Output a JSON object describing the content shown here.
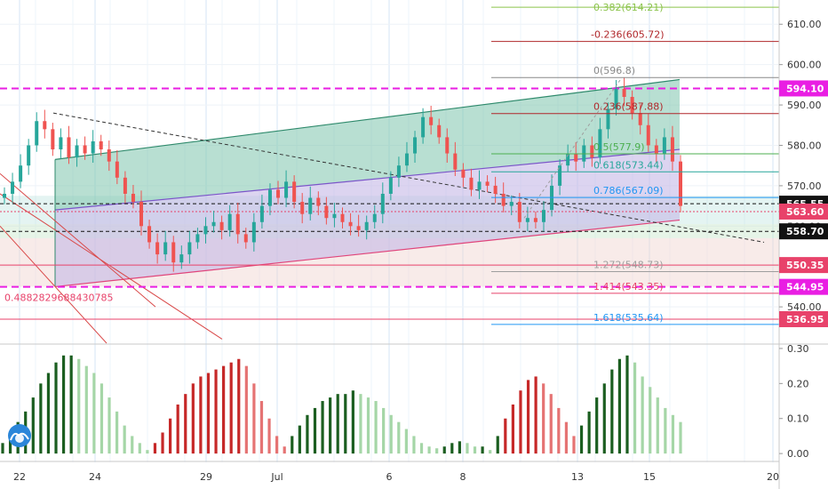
{
  "chart_data": {
    "type": "candlestick",
    "price_axis": {
      "min": 531,
      "max": 616,
      "ticks": [
        540,
        550,
        560,
        570,
        580,
        590,
        600,
        610
      ],
      "tick_labels": [
        "540.00",
        "550.00",
        "560.00",
        "570.00",
        "580.00",
        "590.00",
        "600.00",
        "610.00"
      ]
    },
    "indicator_axis": {
      "min": -0.02,
      "max": 0.31,
      "ticks": [
        0.0,
        0.1,
        0.2,
        0.3
      ],
      "tick_labels": [
        "0.00",
        "0.10",
        "0.20",
        "0.30"
      ]
    },
    "date_labels": [
      "22",
      "24",
      "29",
      "Jul",
      "6",
      "8",
      "13",
      "15",
      "20"
    ],
    "price_badges": [
      {
        "value": 594.1,
        "label": "594.10",
        "color": "#e91ee3"
      },
      {
        "value": 565.55,
        "label": "565.55",
        "color": "#111111"
      },
      {
        "value": 563.6,
        "label": "563.60",
        "color": "#e8426a"
      },
      {
        "value": 558.7,
        "label": "558.70",
        "color": "#111111"
      },
      {
        "value": 550.35,
        "label": "550.35",
        "color": "#e8426a"
      },
      {
        "value": 544.95,
        "label": "544.95",
        "color": "#e91ee3"
      },
      {
        "value": 536.95,
        "label": "536.95",
        "color": "#e8426a"
      }
    ],
    "fib_levels": [
      {
        "label": "-0.236(605.72)",
        "value": 605.72,
        "color": "#b0272a"
      },
      {
        "label": "0(596.8)",
        "value": 596.8,
        "color": "#888888"
      },
      {
        "label": "0.236(587.88)",
        "value": 587.88,
        "color": "#b0272a"
      },
      {
        "label": "0.5(577.9)",
        "value": 577.9,
        "color": "#4caf50"
      },
      {
        "label": "0.618(573.44)",
        "value": 573.44,
        "color": "#26a69a"
      },
      {
        "label": "0.786(567.09)",
        "value": 567.09,
        "color": "#2196f3"
      },
      {
        "label": "1.272(548.73)",
        "value": 548.73,
        "color": "#9e9e9e"
      },
      {
        "label": "1.414(543.35)",
        "value": 543.35,
        "color": "#e8426a"
      },
      {
        "label": "1.618(535.64)",
        "value": 535.64,
        "color": "#2196f3"
      }
    ],
    "top_fib_partial": "0.382(614.21)",
    "left_annotation": "0.4882829688430785",
    "closes": [
      568,
      571,
      575,
      580,
      586,
      584,
      579,
      582,
      577,
      580,
      578,
      581,
      579,
      576,
      572,
      568,
      566,
      560,
      556,
      553,
      556,
      551,
      553,
      556,
      558,
      560,
      561,
      559,
      563,
      558,
      556,
      561,
      565,
      569,
      567,
      571,
      566,
      563,
      567,
      565,
      562,
      563,
      561,
      560,
      559,
      561,
      563,
      568,
      572,
      575,
      578,
      582,
      587,
      585,
      582,
      578,
      574,
      572,
      569,
      571,
      570,
      568,
      565,
      566,
      561,
      562,
      561,
      564,
      570,
      575,
      578,
      576,
      580,
      577,
      584,
      589,
      594,
      592,
      588,
      585,
      580,
      578,
      582,
      576,
      565
    ],
    "indicator_values": [
      0.03,
      0.06,
      0.09,
      0.12,
      0.16,
      0.2,
      0.23,
      0.26,
      0.28,
      0.28,
      0.27,
      0.25,
      0.23,
      0.2,
      0.16,
      0.12,
      0.08,
      0.05,
      0.03,
      0.01,
      0.03,
      0.06,
      0.1,
      0.14,
      0.17,
      0.2,
      0.22,
      0.23,
      0.24,
      0.25,
      0.26,
      0.27,
      0.25,
      0.2,
      0.15,
      0.1,
      0.05,
      0.02,
      0.05,
      0.08,
      0.11,
      0.13,
      0.15,
      0.16,
      0.17,
      0.17,
      0.18,
      0.17,
      0.16,
      0.15,
      0.13,
      0.11,
      0.09,
      0.07,
      0.05,
      0.03,
      0.02,
      0.015,
      0.02,
      0.03,
      0.035,
      0.03,
      0.02,
      0.02,
      0.01,
      0.05,
      0.1,
      0.14,
      0.18,
      0.21,
      0.22,
      0.2,
      0.17,
      0.13,
      0.09,
      0.05,
      0.08,
      0.12,
      0.16,
      0.2,
      0.24,
      0.27,
      0.28,
      0.26,
      0.22,
      0.19,
      0.16,
      0.13,
      0.11,
      0.09
    ]
  }
}
